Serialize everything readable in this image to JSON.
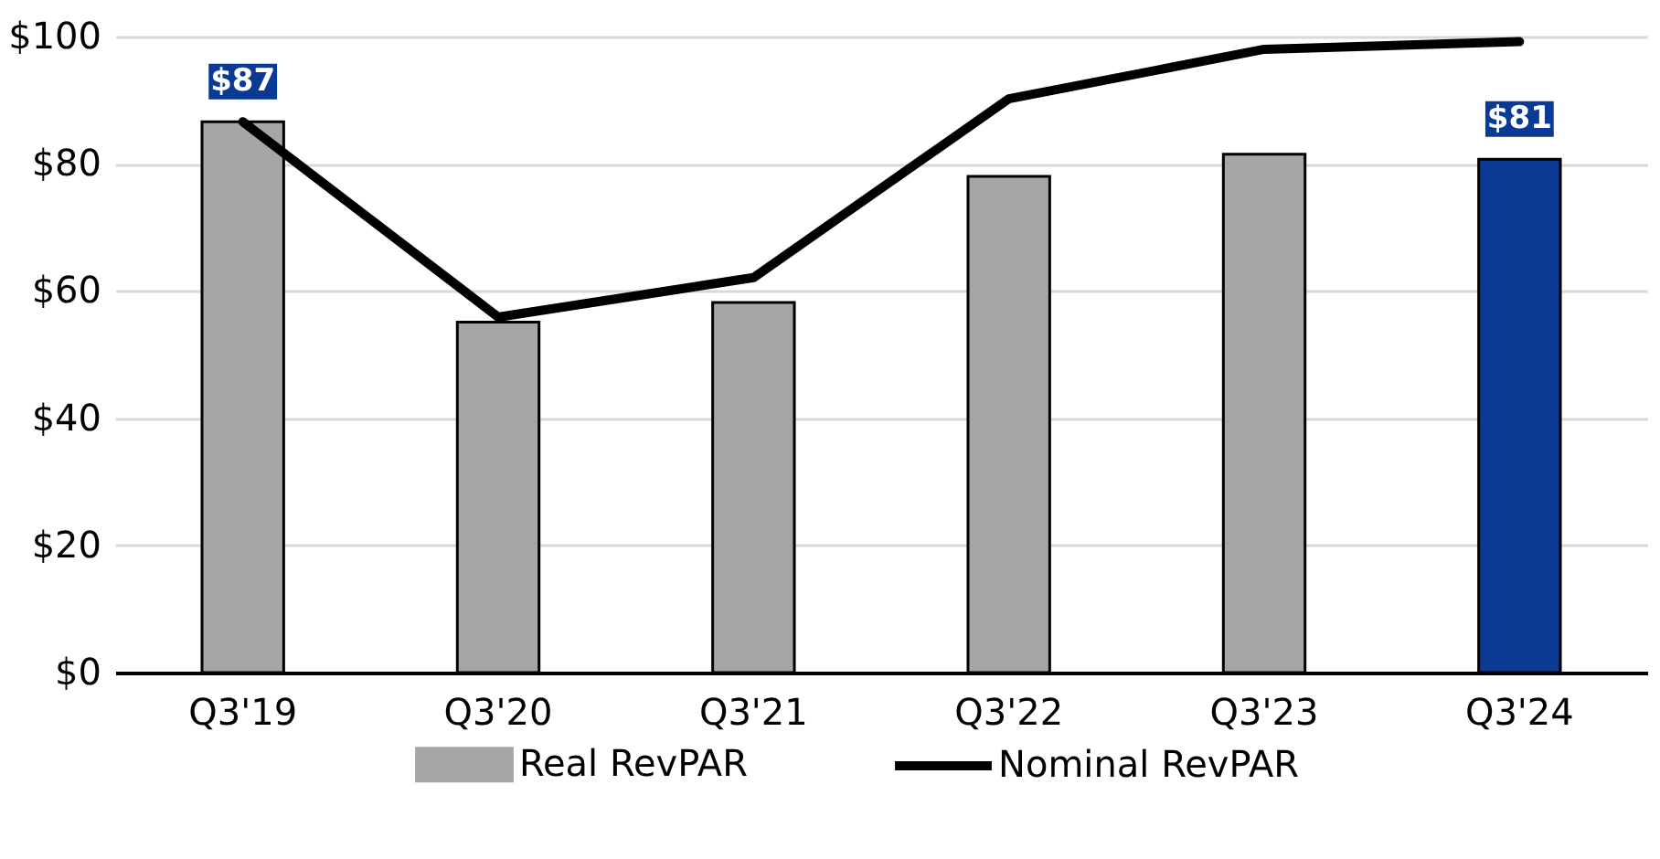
{
  "chart_data": {
    "type": "bar",
    "categories": [
      "Q3'19",
      "Q3'20",
      "Q3'21",
      "Q3'22",
      "Q3'23",
      "Q3'24"
    ],
    "series": [
      {
        "name": "Real RevPAR",
        "color": "#a6a6a6",
        "colors": [
          "#a6a6a6",
          "#a6a6a6",
          "#a6a6a6",
          "#a6a6a6",
          "#a6a6a6",
          "#0a3a94"
        ],
        "values": [
          86.6,
          55.1,
          58.2,
          78.0,
          81.5,
          80.7
        ],
        "value_labels": [
          "$87",
          null,
          null,
          null,
          null,
          "$81"
        ]
      },
      {
        "name": "Nominal RevPAR",
        "type": "line",
        "color": "#000000",
        "values": [
          86.6,
          55.9,
          62.1,
          90.2,
          98.0,
          99.2
        ]
      }
    ],
    "ylim": [
      0,
      100
    ],
    "yticks": [
      {
        "value": 0,
        "label": "$0"
      },
      {
        "value": 20,
        "label": "$20"
      },
      {
        "value": 40,
        "label": "$40"
      },
      {
        "value": 60,
        "label": "$60"
      },
      {
        "value": 80,
        "label": "$80"
      },
      {
        "value": 100,
        "label": "$100"
      }
    ],
    "grid": "y",
    "legend": "bottom"
  }
}
